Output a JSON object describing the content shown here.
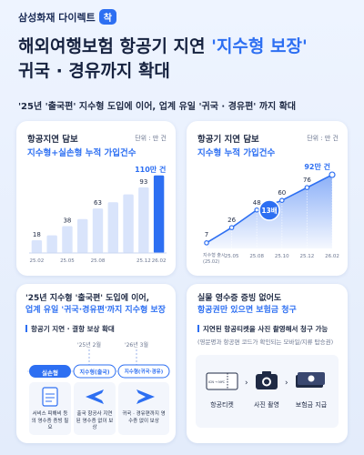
{
  "brand": {
    "name": "삼성화재 다이렉트",
    "badge": "착"
  },
  "headline": {
    "line1_a": "해외여행보험 항공기 지연 ",
    "line1_b": "'지수형 보장'",
    "line2": "귀국 · 경유까지 확대"
  },
  "subhead": "'25년 '출국편' 지수형 도입에 이어, 업계 유일 '귀국 · 경유편' 까지 확대",
  "left_chart": {
    "title": "항공지연 담보",
    "subtitle": "지수형+실손형 누적 가입건수",
    "unit": "단위 : 만 건",
    "value_label": "110만 건"
  },
  "right_chart": {
    "title": "항공기 지연 담보",
    "subtitle": "지수형 누적 가입건수",
    "unit": "단위 : 만 건",
    "value_label": "92만 건",
    "start_note": "지수형 출시",
    "start_date": "(25.02)",
    "badge": "13배"
  },
  "chart_data": [
    {
      "type": "bar",
      "title": "항공지연 담보",
      "subtitle": "지수형+실손형 누적 가입건수",
      "categories": [
        "25.02",
        "",
        "25.05",
        "",
        "25.08",
        "",
        "",
        "25.12",
        "26.02"
      ],
      "tick_labels": [
        "25.02",
        "25.05",
        "25.08",
        "25.12",
        "26.02"
      ],
      "values": [
        18,
        25,
        38,
        48,
        63,
        72,
        83,
        93,
        110
      ],
      "labeled_values": [
        18,
        38,
        63,
        93,
        110
      ],
      "ylim": [
        0,
        120
      ]
    },
    {
      "type": "area",
      "title": "항공기 지연 담보",
      "subtitle": "지수형 누적 가입건수",
      "x": [
        "25.02",
        "25.05",
        "25.08",
        "25.10",
        "25.12",
        "26.02"
      ],
      "values": [
        7,
        26,
        48,
        60,
        76,
        92
      ],
      "tick_labels": [
        "25.02",
        "25.05",
        "25.08",
        "25.10",
        "25.12",
        "26.02"
      ],
      "ylim": [
        0,
        100
      ]
    }
  ],
  "bottom_left": {
    "title_a": "'25년 지수형 '출국편' 도입에 이어,",
    "title_b": "업계 유일 '귀국·경유편'까지 지수형 보장",
    "section": "항공기 지연 · 결항 보상 확대",
    "date1": "'25년 2월",
    "date2": "'26년 3월",
    "pill1": "실손형",
    "pill2": "지수형(출국)",
    "pill3": "지수형(귀국·경유)",
    "desc1": "서비스 피해비 등의 영수증 증빙 필요",
    "desc2": "출국 항공사 지연된 영수증 없이 보상",
    "desc3": "귀국 · 경유편까지 영수증 없이 보상"
  },
  "bottom_right": {
    "title_a": "실물 영수증 증빙 없어도",
    "title_b": "항공권만 있으면 보험금 청구",
    "note": "지연된 항공티켓을 사진 촬영해서 청구 가능",
    "note_sub": "(영문명과 항공편 코드가 확인되는 모바일/지류 탑승권)",
    "step1": "항공티켓",
    "step2": "사진 촬영",
    "step3": "보험금 지급",
    "ticket_text": "ICN → NYC"
  },
  "colors": {
    "accent": "#2d6ff2",
    "bar_light": "#d9e4fb",
    "bar_dark": "#2d6ff2"
  }
}
